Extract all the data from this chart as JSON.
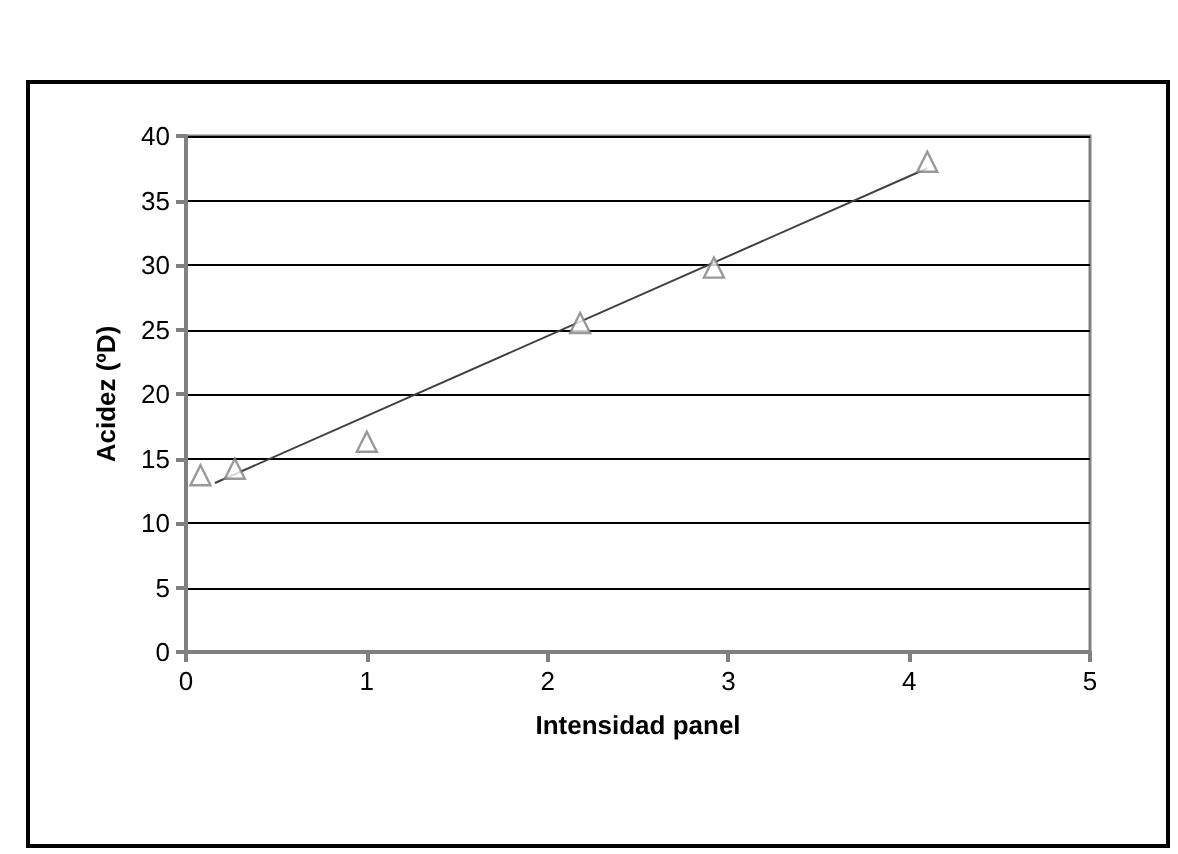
{
  "chart_data": {
    "type": "scatter",
    "xlabel": "Intensidad panel",
    "ylabel": "Acidez (ºD)",
    "xlim": [
      0,
      5
    ],
    "xticks": [
      0,
      1,
      2,
      3,
      4,
      5
    ],
    "ylim": [
      0,
      40
    ],
    "yticks": [
      0,
      5,
      10,
      15,
      20,
      25,
      30,
      35,
      40
    ],
    "grid": "y",
    "marker": "triangle",
    "series": [
      {
        "color": "#808080",
        "x": [
          0.08,
          0.27,
          1.0,
          2.18,
          2.92,
          4.1
        ],
        "values": [
          13.7,
          14.2,
          16.3,
          25.5,
          29.8,
          38
        ]
      },
      {
        "type": "line",
        "color": "#404040",
        "marker": "none",
        "x": [
          0.16,
          4.1
        ],
        "values": [
          13.1,
          37.5
        ]
      }
    ]
  }
}
